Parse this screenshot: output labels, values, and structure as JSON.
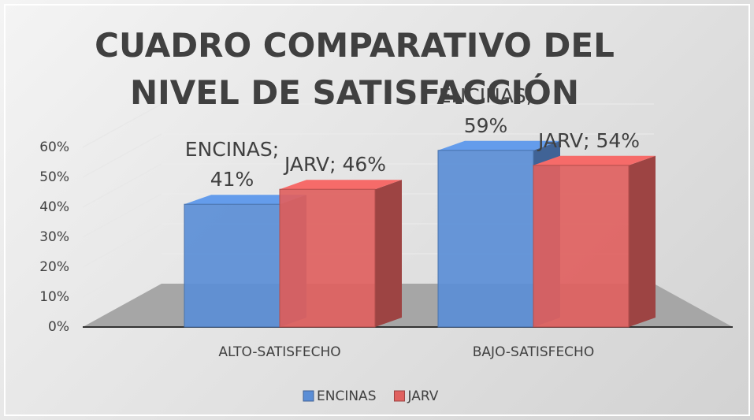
{
  "chart_data": {
    "type": "bar3d",
    "title": "CUADRO COMPARATIVO DEL NIVEL DE SATISFACCIÓN",
    "categories": [
      "ALTO-SATISFECHO",
      "BAJO-SATISFECHO"
    ],
    "series": [
      {
        "name": "ENCINAS",
        "color": "#5b8ed6",
        "values": [
          41,
          59
        ],
        "value_labels": [
          "ENCINAS; 41%",
          "ENCINAS; 59%"
        ]
      },
      {
        "name": "JARV",
        "color": "#e0615f",
        "values": [
          46,
          54
        ],
        "value_labels": [
          "JARV; 46%",
          "JARV; 54%"
        ]
      }
    ],
    "ylim": [
      0,
      60
    ],
    "yticks": [
      {
        "value": 0,
        "label": "0%"
      },
      {
        "value": 10,
        "label": "10%"
      },
      {
        "value": 20,
        "label": "20%"
      },
      {
        "value": 30,
        "label": "30%"
      },
      {
        "value": 40,
        "label": "40%"
      },
      {
        "value": 50,
        "label": "50%"
      },
      {
        "value": 60,
        "label": "60%"
      }
    ],
    "grid": true,
    "legend": "bottom"
  }
}
